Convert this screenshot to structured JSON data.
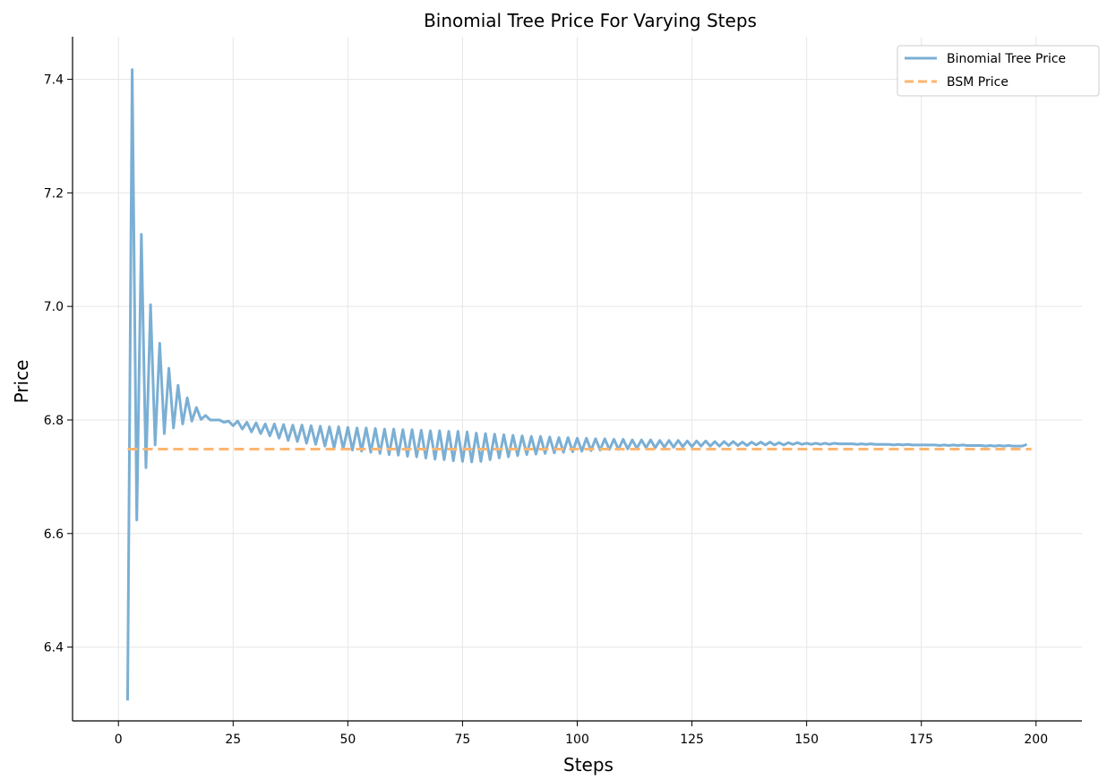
{
  "chart_data": {
    "type": "line",
    "title": "Binomial Tree Price For Varying Steps",
    "xlabel": "Steps",
    "ylabel": "Price",
    "xlim": [
      -10,
      210
    ],
    "ylim": [
      6.27,
      7.475
    ],
    "xticks": [
      0,
      25,
      50,
      75,
      100,
      125,
      150,
      175,
      200
    ],
    "xtick_labels": [
      "0",
      "25",
      "50",
      "75",
      "100",
      "125",
      "150",
      "175",
      "200"
    ],
    "yticks": [
      6.4,
      6.6,
      6.8,
      7.0,
      7.2,
      7.4
    ],
    "ytick_labels": [
      "6.4",
      "6.6",
      "6.8",
      "7.0",
      "7.2",
      "7.4"
    ],
    "grid": true,
    "legend_position": "top-right",
    "series": [
      {
        "name": "Binomial Tree Price",
        "color": "#7bafd4",
        "line_style": "solid",
        "x_start": 2,
        "x_step": 1,
        "values": [
          6.306,
          7.417,
          6.624,
          7.127,
          6.716,
          7.003,
          6.756,
          6.935,
          6.776,
          6.891,
          6.786,
          6.861,
          6.793,
          6.839,
          6.798,
          6.822,
          6.801,
          6.808,
          6.8,
          6.8,
          6.8,
          6.796,
          6.798,
          6.79,
          6.798,
          6.784,
          6.796,
          6.779,
          6.795,
          6.776,
          6.793,
          6.772,
          6.793,
          6.768,
          6.792,
          6.764,
          6.791,
          6.762,
          6.791,
          6.759,
          6.79,
          6.757,
          6.789,
          6.754,
          6.788,
          6.751,
          6.788,
          6.749,
          6.787,
          6.747,
          6.786,
          6.745,
          6.786,
          6.743,
          6.785,
          6.741,
          6.784,
          6.739,
          6.784,
          6.738,
          6.783,
          6.736,
          6.783,
          6.735,
          6.782,
          6.733,
          6.781,
          6.731,
          6.781,
          6.73,
          6.78,
          6.728,
          6.78,
          6.727,
          6.779,
          6.726,
          6.777,
          6.727,
          6.776,
          6.73,
          6.775,
          6.733,
          6.774,
          6.735,
          6.773,
          6.737,
          6.772,
          6.739,
          6.771,
          6.74,
          6.771,
          6.741,
          6.77,
          6.742,
          6.769,
          6.743,
          6.769,
          6.744,
          6.768,
          6.745,
          6.768,
          6.746,
          6.767,
          6.747,
          6.767,
          6.748,
          6.766,
          6.748,
          6.766,
          6.749,
          6.765,
          6.75,
          6.765,
          6.751,
          6.765,
          6.751,
          6.764,
          6.752,
          6.764,
          6.752,
          6.764,
          6.753,
          6.763,
          6.753,
          6.763,
          6.754,
          6.763,
          6.754,
          6.762,
          6.754,
          6.762,
          6.755,
          6.762,
          6.755,
          6.761,
          6.755,
          6.761,
          6.756,
          6.761,
          6.756,
          6.761,
          6.756,
          6.76,
          6.756,
          6.76,
          6.757,
          6.76,
          6.757,
          6.759,
          6.757,
          6.759,
          6.757,
          6.759,
          6.757,
          6.759,
          6.758,
          6.758,
          6.758,
          6.758,
          6.757,
          6.758,
          6.757,
          6.758,
          6.757,
          6.757,
          6.757,
          6.757,
          6.756,
          6.757,
          6.756,
          6.757,
          6.756,
          6.756,
          6.756,
          6.756,
          6.756,
          6.756,
          6.755,
          6.756,
          6.755,
          6.756,
          6.755,
          6.756,
          6.755,
          6.755,
          6.755,
          6.755,
          6.754,
          6.755,
          6.754,
          6.755,
          6.754,
          6.755,
          6.754,
          6.754,
          6.754,
          6.757
        ]
      },
      {
        "name": "BSM Price",
        "color": "#ffb570",
        "line_style": "dashed",
        "x": [
          2,
          199
        ],
        "values": [
          6.7486,
          6.7486
        ]
      }
    ]
  }
}
